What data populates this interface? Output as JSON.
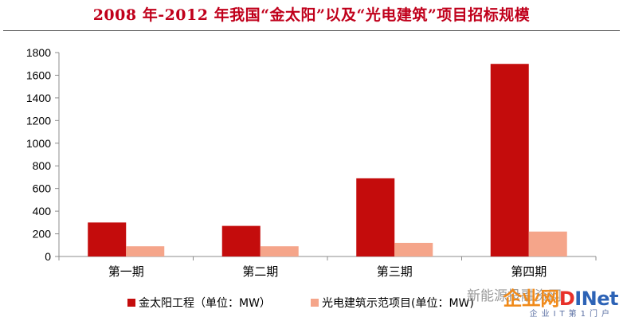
{
  "colors": {
    "title": "#c0001b",
    "series1": "#c40c0c",
    "series2": "#f5a58a",
    "axis": "#8c8c8c"
  },
  "chart_data": {
    "type": "bar",
    "title": "2008 年-2012 年我国“金太阳”以及“光电建筑”项目招标规模",
    "categories": [
      "第一期",
      "第二期",
      "第三期",
      "第四期"
    ],
    "series": [
      {
        "name": "金太阳工程（单位：MW）",
        "values": [
          300,
          270,
          690,
          1700
        ]
      },
      {
        "name": "光电建筑示范项目(单位：MW)",
        "values": [
          90,
          90,
          120,
          220
        ]
      }
    ],
    "ylim": [
      0,
      1800
    ],
    "yticks": [
      "0",
      "200",
      "400",
      "600",
      "800",
      "1000",
      "1200",
      "1400",
      "1600",
      "1800"
    ],
    "xlabel": "",
    "ylabel": "",
    "grid": false,
    "legend": "bottom"
  },
  "watermark": {
    "line1": "新能源投融资网",
    "logo_part1": "企业网",
    "logo_part2": "D",
    "logo_part3": "INet",
    "line2": "企业IT第1门户"
  }
}
